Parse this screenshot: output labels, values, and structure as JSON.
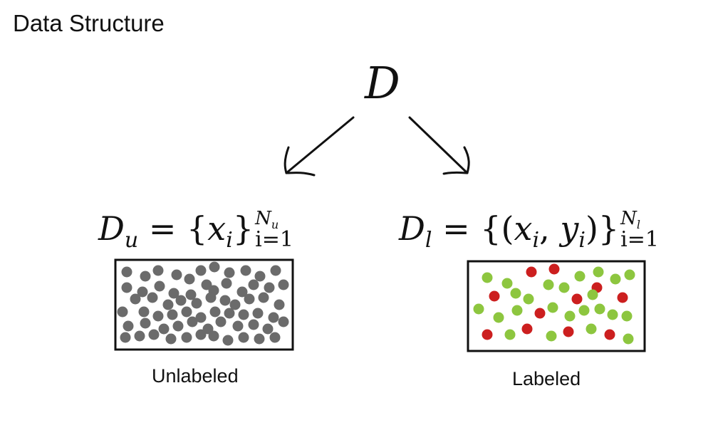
{
  "title": "Data Structure",
  "root": {
    "symbol": "D"
  },
  "unlabeled": {
    "formula": {
      "symbol": "D",
      "subscript": "u",
      "element": "x",
      "element_index": "i",
      "upper_limit": "N",
      "upper_limit_sub": "u",
      "lower_limit": "i=1"
    },
    "caption": "Unlabeled",
    "dot_color": "#6b6b6b"
  },
  "labeled": {
    "formula": {
      "symbol": "D",
      "subscript": "l",
      "element_x": "x",
      "element_y": "y",
      "element_index": "i",
      "upper_limit": "N",
      "upper_limit_sub": "l",
      "lower_limit": "i=1"
    },
    "caption": "Labeled",
    "colors": {
      "green": "#8dc63f",
      "red": "#cc1f1f"
    }
  },
  "icons": [
    "arrow-left-icon",
    "arrow-right-icon"
  ]
}
